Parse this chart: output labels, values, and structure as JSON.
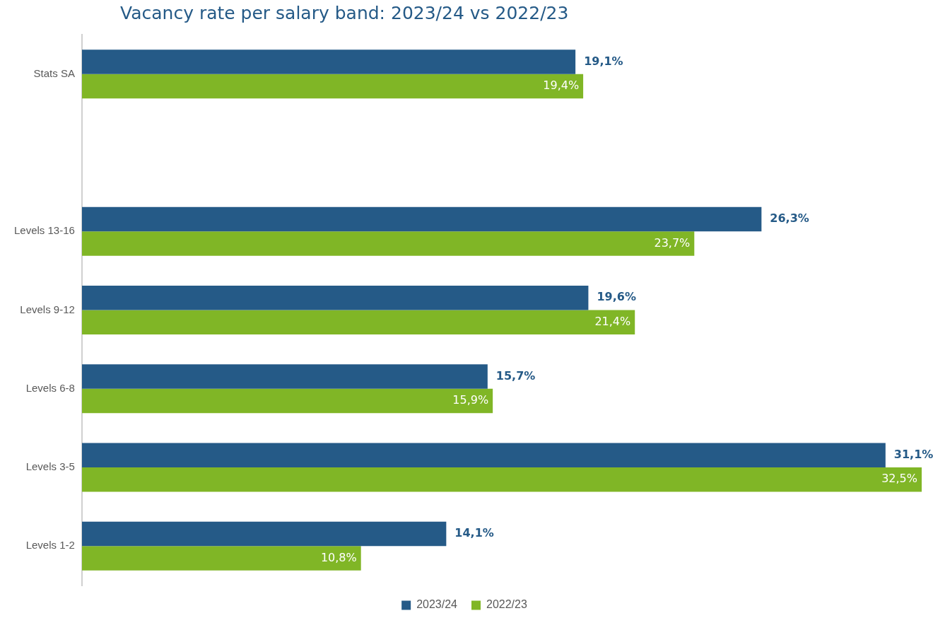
{
  "chart_data": {
    "type": "bar",
    "orientation": "horizontal",
    "title": "Vacancy rate per salary band: 2023/24 vs 2022/23",
    "categories": [
      "Stats SA",
      null,
      "Levels 13-16",
      "Levels 9-12",
      "Levels 6-8",
      "Levels 3-5",
      "Levels 1-2"
    ],
    "series": [
      {
        "name": "2023/24",
        "color": "#255a87",
        "values": [
          19.1,
          null,
          26.3,
          19.6,
          15.7,
          31.1,
          14.1
        ],
        "value_labels": [
          "19,1%",
          null,
          "26,3%",
          "19,6%",
          "15,7%",
          "31,1%",
          "14,1%"
        ]
      },
      {
        "name": "2022/23",
        "color": "#80b626",
        "values": [
          19.4,
          null,
          23.7,
          21.4,
          15.9,
          32.5,
          10.8
        ],
        "value_labels": [
          "19,4%",
          null,
          "23,7%",
          "21,4%",
          "15,9%",
          "32,5%",
          "10,8%"
        ]
      }
    ],
    "legend": "bottom"
  }
}
